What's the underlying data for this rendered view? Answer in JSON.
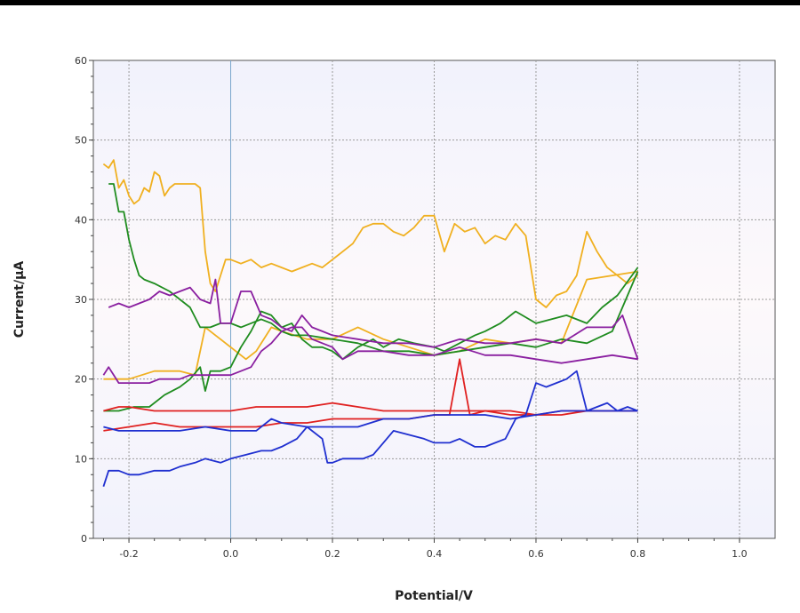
{
  "chart_data": {
    "type": "line",
    "xlabel": "Potential/V",
    "ylabel": "Current/μA",
    "xlim": [
      -0.27,
      1.07
    ],
    "ylim": [
      0,
      60
    ],
    "xticks": [
      -0.2,
      0.0,
      0.2,
      0.4,
      0.6,
      0.8,
      1.0
    ],
    "xtick_labels": [
      "-0.2",
      "0.0",
      "0.2",
      "0.4",
      "0.6",
      "0.8",
      "1.0"
    ],
    "yticks": [
      0,
      10,
      20,
      30,
      40,
      50,
      60
    ],
    "ytick_labels": [
      "0",
      "10",
      "20",
      "30",
      "40",
      "50",
      "60"
    ],
    "grid": true,
    "series": [
      {
        "color": "#f0b020",
        "x": [
          -0.25,
          -0.24,
          -0.23,
          -0.22,
          -0.21,
          -0.2,
          -0.19,
          -0.18,
          -0.17,
          -0.16,
          -0.15,
          -0.14,
          -0.13,
          -0.12,
          -0.11,
          -0.1,
          -0.09,
          -0.08,
          -0.07,
          -0.06,
          -0.05,
          -0.04,
          -0.03,
          -0.02,
          -0.01,
          0.0,
          0.02,
          0.04,
          0.06,
          0.08,
          0.1,
          0.12,
          0.14,
          0.16,
          0.18,
          0.2,
          0.22,
          0.24,
          0.26,
          0.28,
          0.3,
          0.32,
          0.34,
          0.36,
          0.38,
          0.4,
          0.42,
          0.44,
          0.46,
          0.48,
          0.5,
          0.52,
          0.54,
          0.56,
          0.58,
          0.6,
          0.62,
          0.64,
          0.66,
          0.68,
          0.7,
          0.72,
          0.74,
          0.76,
          0.78,
          0.8
        ],
        "y": [
          47,
          46.5,
          47.5,
          44,
          45,
          43,
          42,
          42.5,
          44,
          43.5,
          46,
          45.5,
          43,
          44,
          44.5,
          44.5,
          44.5,
          44.5,
          44.5,
          44,
          36,
          32,
          31,
          33,
          35,
          35,
          34.5,
          35,
          34,
          34.5,
          34,
          33.5,
          34,
          34.5,
          34,
          35,
          36,
          37,
          39,
          39.5,
          39.5,
          38.5,
          38,
          39,
          40.5,
          40.5,
          36,
          39.5,
          38.5,
          39,
          37,
          38,
          37.5,
          39.5,
          38,
          30,
          29,
          30.5,
          31,
          33,
          38.5,
          36,
          34,
          33,
          32,
          33
        ]
      },
      {
        "color": "#f0b020",
        "x": [
          -0.25,
          -0.2,
          -0.15,
          -0.1,
          -0.07,
          -0.05,
          -0.03,
          -0.01,
          0.01,
          0.03,
          0.05,
          0.08,
          0.1,
          0.15,
          0.2,
          0.25,
          0.3,
          0.35,
          0.4,
          0.45,
          0.5,
          0.55,
          0.6,
          0.65,
          0.7,
          0.75,
          0.8
        ],
        "y": [
          20,
          20,
          21,
          21,
          20.5,
          26.5,
          25.5,
          24.5,
          23.5,
          22.5,
          23.5,
          26.5,
          26,
          25,
          25,
          26.5,
          25,
          24,
          23,
          23.5,
          25,
          24.5,
          25,
          24.5,
          32.5,
          33,
          33.5
        ]
      },
      {
        "color": "#1f8c1f",
        "x": [
          -0.24,
          -0.23,
          -0.22,
          -0.21,
          -0.2,
          -0.19,
          -0.18,
          -0.17,
          -0.15,
          -0.12,
          -0.1,
          -0.08,
          -0.06,
          -0.04,
          -0.02,
          0.0,
          0.02,
          0.04,
          0.06,
          0.08,
          0.1,
          0.12,
          0.15,
          0.2,
          0.25,
          0.3,
          0.35,
          0.4,
          0.45,
          0.5,
          0.55,
          0.6,
          0.65,
          0.7,
          0.75,
          0.8
        ],
        "y": [
          44.5,
          44.5,
          41,
          41,
          37.5,
          35,
          33,
          32.5,
          32,
          31,
          30,
          29,
          26.5,
          26.5,
          27,
          27,
          26.5,
          27,
          27.5,
          27,
          26,
          25.5,
          25.5,
          25,
          24.5,
          23.5,
          23.5,
          23,
          23.5,
          24,
          24.5,
          24,
          25,
          24.5,
          26,
          33.5
        ]
      },
      {
        "color": "#1f8c1f",
        "x": [
          -0.25,
          -0.22,
          -0.19,
          -0.16,
          -0.13,
          -0.1,
          -0.08,
          -0.06,
          -0.05,
          -0.04,
          -0.02,
          0.0,
          0.02,
          0.04,
          0.06,
          0.08,
          0.1,
          0.12,
          0.14,
          0.16,
          0.18,
          0.2,
          0.22,
          0.25,
          0.28,
          0.3,
          0.33,
          0.36,
          0.4,
          0.42,
          0.45,
          0.48,
          0.5,
          0.53,
          0.56,
          0.6,
          0.63,
          0.66,
          0.7,
          0.73,
          0.76,
          0.8
        ],
        "y": [
          16,
          16,
          16.5,
          16.5,
          18,
          19,
          20,
          21.5,
          18.5,
          21,
          21,
          21.5,
          24,
          26,
          28.5,
          28,
          26.5,
          27,
          25,
          24,
          24,
          23.5,
          22.5,
          24,
          25,
          24,
          25,
          24.5,
          24,
          23.5,
          24.5,
          25.5,
          26,
          27,
          28.5,
          27,
          27.5,
          28,
          27,
          29,
          30.5,
          34
        ]
      },
      {
        "color": "#8a1fa0",
        "x": [
          -0.24,
          -0.22,
          -0.2,
          -0.18,
          -0.16,
          -0.14,
          -0.12,
          -0.1,
          -0.08,
          -0.06,
          -0.04,
          -0.03,
          -0.02,
          0.0,
          0.02,
          0.04,
          0.06,
          0.08,
          0.1,
          0.12,
          0.14,
          0.16,
          0.18,
          0.2,
          0.25,
          0.3,
          0.35,
          0.4,
          0.45,
          0.5,
          0.55,
          0.6,
          0.65,
          0.7,
          0.75,
          0.77,
          0.8
        ],
        "y": [
          29,
          29.5,
          29,
          29.5,
          30,
          31,
          30.5,
          31,
          31.5,
          30,
          29.5,
          32.5,
          27,
          27,
          31,
          31,
          28,
          27.5,
          26.5,
          26,
          28,
          26.5,
          26,
          25.5,
          25,
          24.5,
          24.5,
          24,
          25,
          24.5,
          24.5,
          25,
          24.5,
          26.5,
          26.5,
          28,
          22.5
        ]
      },
      {
        "color": "#8a1fa0",
        "x": [
          -0.25,
          -0.24,
          -0.22,
          -0.2,
          -0.18,
          -0.16,
          -0.14,
          -0.12,
          -0.1,
          -0.08,
          -0.06,
          -0.04,
          -0.02,
          0.0,
          0.02,
          0.04,
          0.06,
          0.08,
          0.1,
          0.12,
          0.14,
          0.16,
          0.18,
          0.2,
          0.22,
          0.25,
          0.3,
          0.35,
          0.4,
          0.45,
          0.5,
          0.55,
          0.6,
          0.65,
          0.7,
          0.75,
          0.8
        ],
        "y": [
          20.5,
          21.5,
          19.5,
          19.5,
          19.5,
          19.5,
          20,
          20,
          20,
          20.5,
          20.5,
          20.5,
          20.5,
          20.5,
          21,
          21.5,
          23.5,
          24.5,
          26,
          26.5,
          26.5,
          25,
          24.5,
          24,
          22.5,
          23.5,
          23.5,
          23,
          23,
          24,
          23,
          23,
          22.5,
          22,
          22.5,
          23,
          22.5
        ]
      },
      {
        "color": "#e02020",
        "x": [
          -0.25,
          -0.22,
          -0.2,
          -0.15,
          -0.1,
          -0.05,
          0.0,
          0.05,
          0.1,
          0.15,
          0.2,
          0.25,
          0.3,
          0.35,
          0.4,
          0.45,
          0.5,
          0.55,
          0.6,
          0.65,
          0.7,
          0.75,
          0.8
        ],
        "y": [
          16,
          16.5,
          16.5,
          16,
          16,
          16,
          16,
          16.5,
          16.5,
          16.5,
          17,
          16.5,
          16,
          16,
          16,
          16,
          16,
          16,
          15.5,
          15.5,
          16,
          16,
          16
        ]
      },
      {
        "color": "#e02020",
        "x": [
          -0.25,
          -0.2,
          -0.15,
          -0.1,
          -0.05,
          0.0,
          0.05,
          0.1,
          0.15,
          0.2,
          0.25,
          0.3,
          0.35,
          0.4,
          0.43,
          0.45,
          0.47,
          0.5,
          0.55,
          0.6,
          0.65,
          0.7,
          0.75,
          0.8
        ],
        "y": [
          13.5,
          14,
          14.5,
          14,
          14,
          14,
          14,
          14.5,
          14.5,
          15,
          15,
          15,
          15,
          15.5,
          15.5,
          22.5,
          15.5,
          16,
          15.5,
          15.5,
          16,
          16,
          16,
          16
        ]
      },
      {
        "color": "#1f2fd0",
        "x": [
          -0.25,
          -0.24,
          -0.22,
          -0.2,
          -0.18,
          -0.15,
          -0.12,
          -0.1,
          -0.07,
          -0.05,
          -0.02,
          0.0,
          0.03,
          0.06,
          0.08,
          0.1,
          0.13,
          0.15,
          0.18,
          0.19,
          0.2,
          0.22,
          0.24,
          0.26,
          0.28,
          0.3,
          0.32,
          0.35,
          0.38,
          0.4,
          0.43,
          0.45,
          0.48,
          0.5,
          0.52,
          0.54,
          0.56,
          0.58,
          0.6,
          0.62,
          0.64,
          0.66,
          0.68,
          0.7,
          0.72,
          0.74,
          0.76,
          0.78,
          0.8
        ],
        "y": [
          6.5,
          8.5,
          8.5,
          8,
          8,
          8.5,
          8.5,
          9,
          9.5,
          10,
          9.5,
          10,
          10.5,
          11,
          11,
          11.5,
          12.5,
          14,
          12.5,
          9.5,
          9.5,
          10,
          10,
          10,
          10.5,
          12,
          13.5,
          13,
          12.5,
          12,
          12,
          12.5,
          11.5,
          11.5,
          12,
          12.5,
          15,
          15.5,
          19.5,
          19,
          19.5,
          20,
          21,
          16,
          16.5,
          17,
          16,
          16.5,
          16
        ]
      },
      {
        "color": "#1f2fd0",
        "x": [
          -0.25,
          -0.22,
          -0.2,
          -0.15,
          -0.1,
          -0.05,
          0.0,
          0.05,
          0.08,
          0.1,
          0.15,
          0.2,
          0.25,
          0.3,
          0.35,
          0.4,
          0.45,
          0.5,
          0.55,
          0.6,
          0.65,
          0.7,
          0.75,
          0.8
        ],
        "y": [
          14,
          13.5,
          13.5,
          13.5,
          13.5,
          14,
          13.5,
          13.5,
          15,
          14.5,
          14,
          14,
          14,
          15,
          15,
          15.5,
          15.5,
          15.5,
          15,
          15.5,
          16,
          16,
          16,
          16
        ]
      }
    ]
  }
}
